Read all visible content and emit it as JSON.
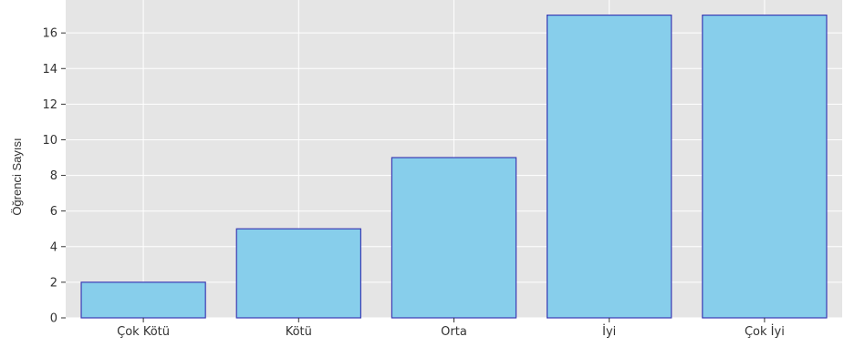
{
  "chart_data": {
    "type": "bar",
    "categories": [
      "Çok Kötü",
      "Kötü",
      "Orta",
      "İyi",
      "Çok İyi"
    ],
    "values": [
      2,
      5,
      9,
      17,
      17
    ],
    "title": "",
    "xlabel": "",
    "ylabel": "Öğrenci Sayısı",
    "ylim": [
      0,
      17.85
    ],
    "yticks": [
      0,
      2,
      4,
      6,
      8,
      10,
      12,
      14,
      16
    ],
    "grid": true,
    "legend": "none",
    "colors": {
      "bar_fill": "#87ceeb",
      "bar_edge": "#3b3bb3",
      "plot_background": "#e5e5e5",
      "grid": "#ffffff",
      "text": "#333333"
    }
  }
}
